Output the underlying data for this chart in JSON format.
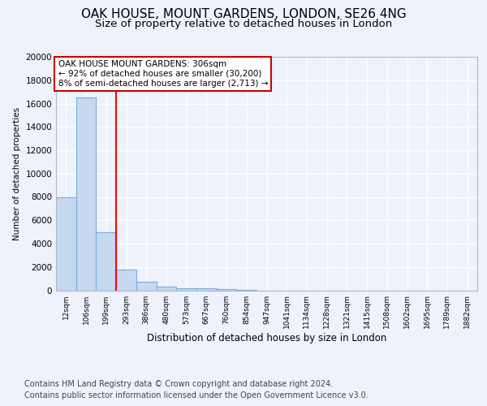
{
  "title1": "OAK HOUSE, MOUNT GARDENS, LONDON, SE26 4NG",
  "title2": "Size of property relative to detached houses in London",
  "xlabel": "Distribution of detached houses by size in London",
  "ylabel": "Number of detached properties",
  "categories": [
    "12sqm",
    "106sqm",
    "199sqm",
    "293sqm",
    "386sqm",
    "480sqm",
    "573sqm",
    "667sqm",
    "760sqm",
    "854sqm",
    "947sqm",
    "1041sqm",
    "1134sqm",
    "1228sqm",
    "1321sqm",
    "1415sqm",
    "1508sqm",
    "1602sqm",
    "1695sqm",
    "1789sqm",
    "1882sqm"
  ],
  "values": [
    8000,
    16500,
    5000,
    1800,
    700,
    300,
    200,
    150,
    100,
    50,
    0,
    0,
    0,
    0,
    0,
    0,
    0,
    0,
    0,
    0,
    0
  ],
  "bar_color": "#c5d9f0",
  "bar_edge_color": "#7aabdc",
  "red_line_x": 2.5,
  "annotation_line1": "OAK HOUSE MOUNT GARDENS: 306sqm",
  "annotation_line2": "← 92% of detached houses are smaller (30,200)",
  "annotation_line3": "8% of semi-detached houses are larger (2,713) →",
  "annotation_box_color": "#ffffff",
  "annotation_box_edge": "#cc0000",
  "ylim": [
    0,
    20000
  ],
  "yticks": [
    0,
    2000,
    4000,
    6000,
    8000,
    10000,
    12000,
    14000,
    16000,
    18000,
    20000
  ],
  "footer1": "Contains HM Land Registry data © Crown copyright and database right 2024.",
  "footer2": "Contains public sector information licensed under the Open Government Licence v3.0.",
  "background_color": "#eef2fa",
  "plot_background": "#eef2fa",
  "grid_color": "#ffffff",
  "title1_fontsize": 11,
  "title2_fontsize": 9.5,
  "annotation_fontsize": 7.5,
  "footer_fontsize": 7,
  "ylabel_fontsize": 7.5,
  "xlabel_fontsize": 8.5,
  "ytick_fontsize": 7.5,
  "xtick_fontsize": 6.5
}
